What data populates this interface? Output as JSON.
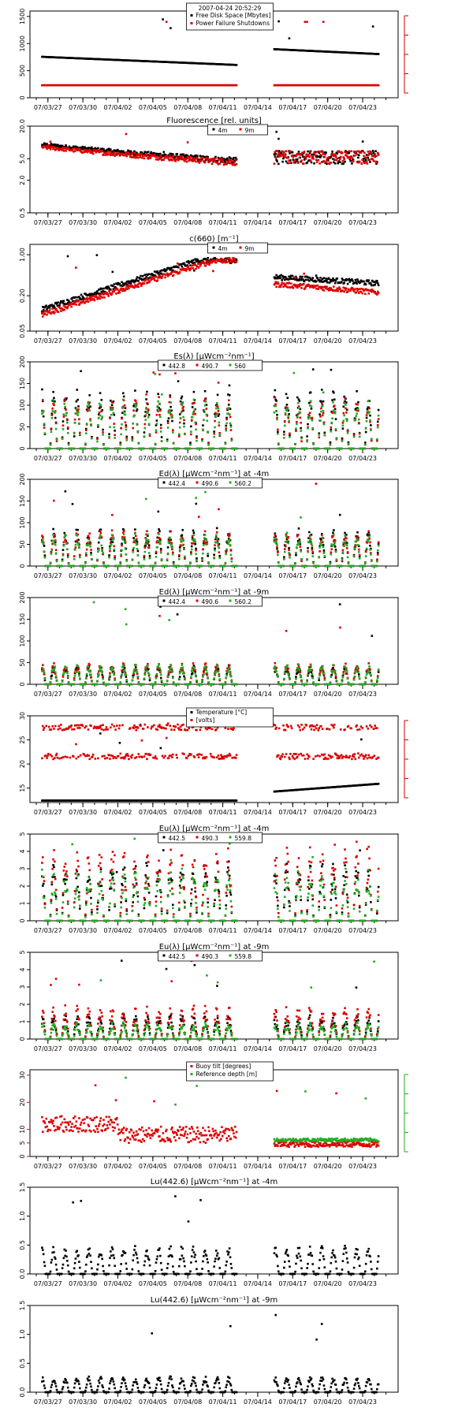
{
  "x_dates": [
    "07/03/27",
    "07/03/30",
    "07/04/02",
    "07/04/05",
    "07/04/08",
    "07/04/11",
    "07/04/14",
    "07/04/17",
    "07/04/20",
    "07/04/23"
  ],
  "chart_data": [
    {
      "id": "disk",
      "type": "scatter",
      "title": "",
      "legend_header": "2007-04-24 20:52:29",
      "ylim": [
        0,
        1600
      ],
      "yticks": [
        "0",
        "500",
        "1000",
        "1500"
      ],
      "ytick_vals": [
        0,
        500,
        1000,
        1500
      ],
      "right_axis": true,
      "right_axis_color": "#cc0000",
      "series": [
        {
          "name": "Free Disk Space [Mbytes]",
          "color": "#000000"
        },
        {
          "name": "Power Failure Shutdowns",
          "color": "#dd0000"
        }
      ]
    },
    {
      "id": "fluor",
      "type": "scatter",
      "title": "Fluorescence [rel. units]",
      "log": true,
      "ylim": [
        0.5,
        20
      ],
      "yticks": [
        "0.5",
        "2.0",
        "5.0",
        "20.0"
      ],
      "ytick_vals": [
        0.5,
        2,
        5,
        20
      ],
      "series": [
        {
          "name": "4m",
          "color": "#000000"
        },
        {
          "name": "9m",
          "color": "#dd0000"
        }
      ]
    },
    {
      "id": "c660",
      "type": "scatter",
      "title": "c(660) [m⁻¹]",
      "log": true,
      "ylim": [
        0.05,
        1.5
      ],
      "yticks": [
        "0.05",
        "0.20",
        "1.00"
      ],
      "ytick_vals": [
        0.05,
        0.2,
        1.0
      ],
      "series": [
        {
          "name": "4m",
          "color": "#000000"
        },
        {
          "name": "9m",
          "color": "#dd0000"
        }
      ]
    },
    {
      "id": "es",
      "type": "scatter",
      "title": "Es(λ) [μWcm⁻²nm⁻¹]",
      "ylim": [
        0,
        200
      ],
      "yticks": [
        "0",
        "50",
        "100",
        "150",
        "200"
      ],
      "ytick_vals": [
        0,
        50,
        100,
        150,
        200
      ],
      "series": [
        {
          "name": "442.8",
          "color": "#000000"
        },
        {
          "name": "490.7",
          "color": "#dd0000"
        },
        {
          "name": "560",
          "color": "#22aa22"
        }
      ]
    },
    {
      "id": "ed4",
      "type": "scatter",
      "title": "Ed(λ) [μWcm⁻²nm⁻¹] at -4m",
      "ylim": [
        0,
        200
      ],
      "yticks": [
        "0",
        "50",
        "100",
        "150",
        "200"
      ],
      "ytick_vals": [
        0,
        50,
        100,
        150,
        200
      ],
      "series": [
        {
          "name": "442.4",
          "color": "#000000"
        },
        {
          "name": "490.6",
          "color": "#dd0000"
        },
        {
          "name": "560.2",
          "color": "#22aa22"
        }
      ]
    },
    {
      "id": "ed9",
      "type": "scatter",
      "title": "Ed(λ) [μWcm⁻²nm⁻¹] at -9m",
      "ylim": [
        0,
        200
      ],
      "yticks": [
        "0",
        "50",
        "100",
        "150",
        "200"
      ],
      "ytick_vals": [
        0,
        50,
        100,
        150,
        200
      ],
      "series": [
        {
          "name": "442.4",
          "color": "#000000"
        },
        {
          "name": "490.6",
          "color": "#dd0000"
        },
        {
          "name": "560.2",
          "color": "#22aa22"
        }
      ]
    },
    {
      "id": "temp",
      "type": "scatter",
      "title": "",
      "ylim": [
        12,
        30
      ],
      "yticks": [
        "15",
        "20",
        "25",
        "30"
      ],
      "ytick_vals": [
        15,
        20,
        25,
        30
      ],
      "right_axis": true,
      "right_axis_color": "#cc0000",
      "series": [
        {
          "name": "Temperature [°C]",
          "color": "#000000"
        },
        {
          "name": "[volts]",
          "color": "#dd0000"
        }
      ]
    },
    {
      "id": "eu4",
      "type": "scatter",
      "title": "Eu(λ) [μWcm⁻²nm⁻¹] at -4m",
      "ylim": [
        0,
        5
      ],
      "yticks": [
        "0",
        "1",
        "2",
        "3",
        "4",
        "5"
      ],
      "ytick_vals": [
        0,
        1,
        2,
        3,
        4,
        5
      ],
      "series": [
        {
          "name": "442.5",
          "color": "#000000"
        },
        {
          "name": "490.3",
          "color": "#dd0000"
        },
        {
          "name": "559.8",
          "color": "#22aa22"
        }
      ]
    },
    {
      "id": "eu9",
      "type": "scatter",
      "title": "Eu(λ) [μWcm⁻²nm⁻¹] at -9m",
      "ylim": [
        0,
        5
      ],
      "yticks": [
        "0",
        "1",
        "2",
        "3",
        "4",
        "5"
      ],
      "ytick_vals": [
        0,
        1,
        2,
        3,
        4,
        5
      ],
      "series": [
        {
          "name": "442.5",
          "color": "#000000"
        },
        {
          "name": "490.3",
          "color": "#dd0000"
        },
        {
          "name": "559.8",
          "color": "#22aa22"
        }
      ]
    },
    {
      "id": "tilt",
      "type": "scatter",
      "title": "",
      "ylim": [
        0,
        32
      ],
      "yticks": [
        "0",
        "5",
        "10",
        "20",
        "30"
      ],
      "ytick_vals": [
        0,
        5,
        10,
        20,
        30
      ],
      "ytick_color": "#cc0000",
      "right_axis": true,
      "right_axis_color": "#22aa22",
      "series": [
        {
          "name": "Buoy tilt [degrees]",
          "color": "#dd0000"
        },
        {
          "name": "Reference depth [m]",
          "color": "#22aa22"
        }
      ]
    },
    {
      "id": "lu4",
      "type": "scatter",
      "title": "Lu(442.6) [μWcm⁻²nm⁻¹] at -4m",
      "ylim": [
        0,
        1.5
      ],
      "yticks": [
        "0.0",
        "0.5",
        "1.0",
        "1.5"
      ],
      "ytick_vals": [
        0,
        0.5,
        1.0,
        1.5
      ],
      "series": [
        {
          "name": "",
          "color": "#000000"
        }
      ]
    },
    {
      "id": "lu9",
      "type": "scatter",
      "title": "Lu(442.6) [μWcm⁻²nm⁻¹] at -9m",
      "ylim": [
        0,
        1.5
      ],
      "yticks": [
        "0.0",
        "0.5",
        "1.0",
        "1.5"
      ],
      "ytick_vals": [
        0,
        0.5,
        1.0,
        1.5
      ],
      "series": [
        {
          "name": "",
          "color": "#000000"
        }
      ]
    }
  ]
}
